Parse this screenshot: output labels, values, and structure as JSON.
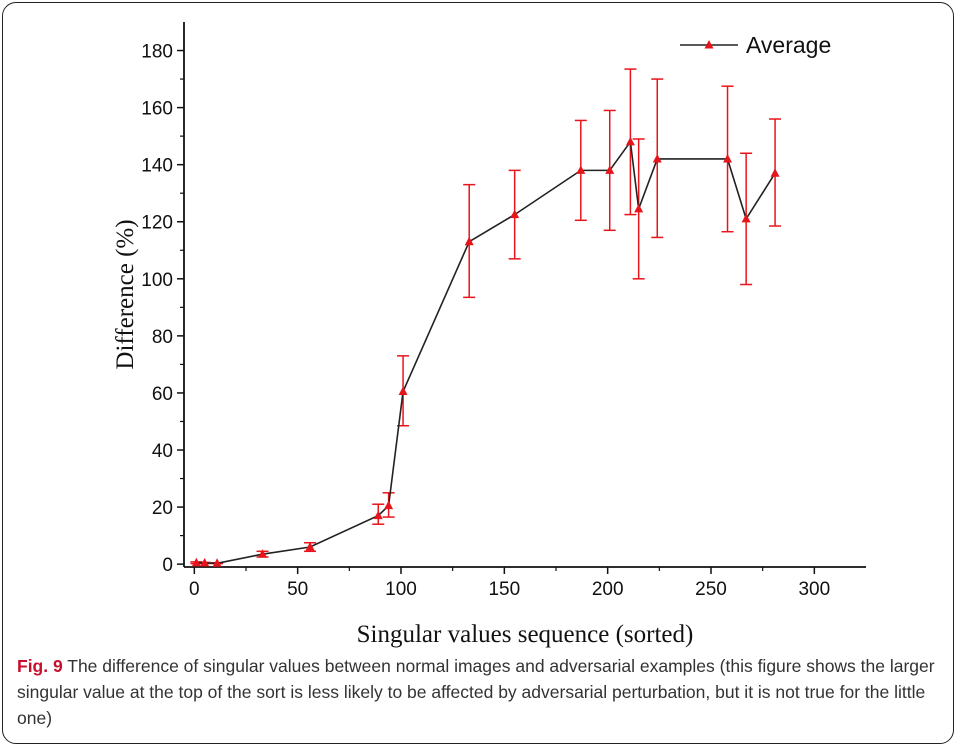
{
  "chart_data": {
    "type": "line",
    "xlabel": "Singular values sequence (sorted)",
    "ylabel": "Difference (%)",
    "xlim": [
      -5,
      325
    ],
    "ylim": [
      -1,
      190
    ],
    "xticks": [
      0,
      50,
      100,
      150,
      200,
      250,
      300
    ],
    "yticks": [
      0,
      20,
      40,
      60,
      80,
      100,
      120,
      140,
      160,
      180
    ],
    "legend_position": "top-right",
    "grid": false,
    "series": [
      {
        "name": "Average",
        "color": "#e8141b",
        "line_color": "#222222",
        "marker": "triangle",
        "x": [
          1,
          5,
          11,
          33,
          56,
          89,
          94,
          101,
          133,
          155,
          187,
          201,
          211,
          215,
          224,
          258,
          267,
          281
        ],
        "y": [
          0.5,
          0.4,
          0.3,
          3.5,
          6,
          17,
          20.5,
          60.5,
          113,
          122.5,
          138,
          138,
          148,
          124.5,
          142,
          142,
          121,
          137
        ],
        "error_low": [
          0.2,
          0.2,
          0.2,
          2.5,
          4.5,
          14,
          16.5,
          48.5,
          93.5,
          107,
          120.5,
          117,
          122.5,
          100,
          114.5,
          116.5,
          98,
          118.5
        ],
        "error_high": [
          0.8,
          0.6,
          0.5,
          4.5,
          7.5,
          21,
          25,
          73,
          133,
          138,
          155.5,
          159,
          173.5,
          149,
          170,
          167.5,
          144,
          156
        ]
      }
    ]
  },
  "caption": {
    "label": "Fig. 9",
    "text": " The difference of singular values between normal images and adversarial examples (this figure shows the larger singular value at the top of the sort is less likely to be affected by adversarial perturbation, but it is not true for the little one)"
  }
}
